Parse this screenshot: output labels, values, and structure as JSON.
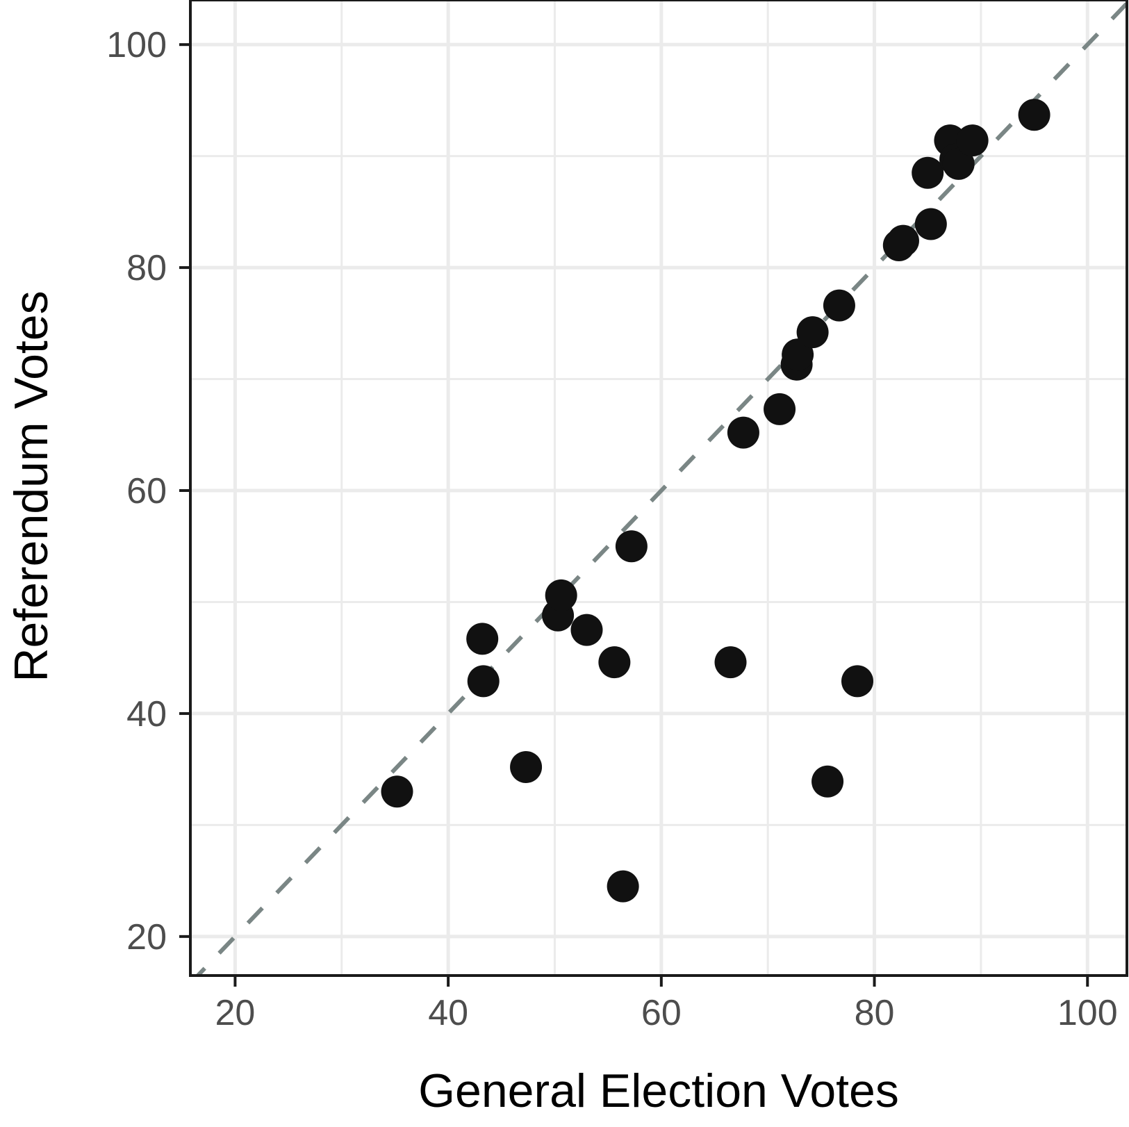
{
  "chart_data": {
    "type": "scatter",
    "title": "",
    "xlabel": "General Election Votes",
    "ylabel": "Referendum Votes",
    "xlim": [
      15.8,
      103.7
    ],
    "ylim": [
      16.5,
      104
    ],
    "xticks": [
      20,
      40,
      60,
      80,
      100
    ],
    "yticks": [
      20,
      40,
      60,
      80,
      100
    ],
    "grid": true,
    "reference_line": {
      "slope": 1,
      "intercept": 0,
      "style": "dashed"
    },
    "colors": {
      "points": "#111111",
      "reference_line": "#7a8685",
      "grid": "#ebebeb",
      "axis": "#1a1a1a"
    },
    "points": [
      {
        "x": 35.2,
        "y": 33.0
      },
      {
        "x": 43.2,
        "y": 46.7
      },
      {
        "x": 43.3,
        "y": 42.9
      },
      {
        "x": 47.3,
        "y": 35.2
      },
      {
        "x": 50.3,
        "y": 48.8
      },
      {
        "x": 50.6,
        "y": 50.6
      },
      {
        "x": 53.0,
        "y": 47.5
      },
      {
        "x": 55.6,
        "y": 44.6
      },
      {
        "x": 56.4,
        "y": 24.5
      },
      {
        "x": 57.2,
        "y": 55.0
      },
      {
        "x": 66.5,
        "y": 44.6
      },
      {
        "x": 67.7,
        "y": 65.2
      },
      {
        "x": 71.1,
        "y": 67.3
      },
      {
        "x": 72.7,
        "y": 71.3
      },
      {
        "x": 72.8,
        "y": 72.2
      },
      {
        "x": 74.2,
        "y": 74.2
      },
      {
        "x": 75.6,
        "y": 33.9
      },
      {
        "x": 76.7,
        "y": 76.6
      },
      {
        "x": 78.4,
        "y": 42.9
      },
      {
        "x": 82.3,
        "y": 82.0
      },
      {
        "x": 82.7,
        "y": 82.4
      },
      {
        "x": 85.0,
        "y": 88.5
      },
      {
        "x": 85.3,
        "y": 83.9
      },
      {
        "x": 87.1,
        "y": 91.4
      },
      {
        "x": 87.6,
        "y": 89.7
      },
      {
        "x": 87.9,
        "y": 89.3
      },
      {
        "x": 89.2,
        "y": 91.4
      },
      {
        "x": 95.0,
        "y": 93.7
      }
    ]
  }
}
